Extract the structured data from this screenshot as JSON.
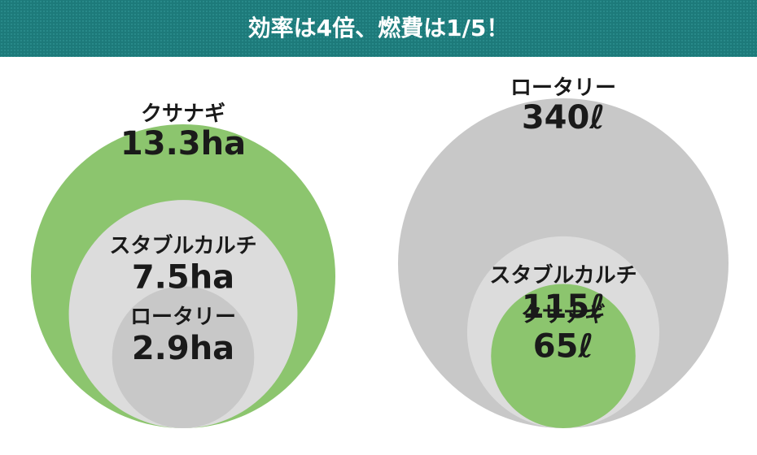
{
  "header": {
    "title": "効率は4倍、燃費は1/5！"
  },
  "chart_data": [
    {
      "type": "nested-circles",
      "categories": [
        "クサナギ",
        "スタブルカルチ",
        "ロータリー"
      ],
      "values": [
        13.3,
        7.5,
        2.9
      ],
      "value_labels": [
        "13.3ha",
        "7.5ha",
        "2.9ha"
      ],
      "colors": [
        "#8cc56e",
        "#dcdcdc",
        "#c8c8c8"
      ]
    },
    {
      "type": "nested-circles",
      "categories": [
        "ロータリー",
        "スタブルカルチ",
        "クサナギ"
      ],
      "values": [
        340,
        115,
        65
      ],
      "value_labels": [
        "340ℓ",
        "115ℓ",
        "65ℓ"
      ],
      "colors": [
        "#c8c8c8",
        "#dcdcdc",
        "#8cc56e"
      ]
    }
  ]
}
